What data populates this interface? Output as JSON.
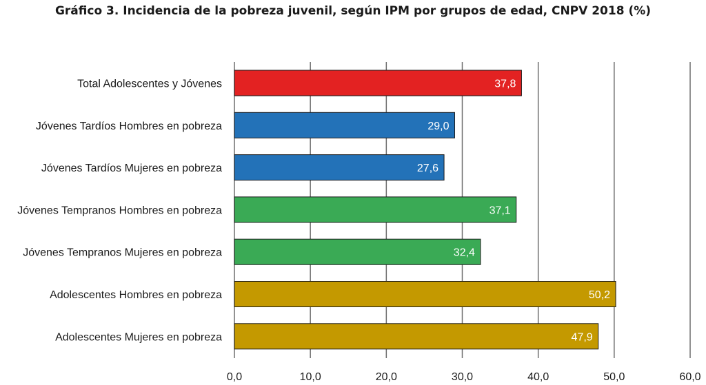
{
  "chart_data": {
    "type": "bar",
    "orientation": "horizontal",
    "title": "Gráfico 3. Incidencia de la pobreza juvenil, según IPM por grupos de edad, CNPV 2018 (%)",
    "xlabel": "",
    "ylabel": "",
    "categories": [
      "Total Adolescentes y Jóvenes",
      "Jóvenes Tardíos Hombres en pobreza",
      "Jóvenes Tardíos Mujeres en pobreza",
      "Jóvenes Tempranos Hombres en pobreza",
      "Jóvenes Tempranos Mujeres en pobreza",
      "Adolescentes Hombres en pobreza",
      "Adolescentes Mujeres en pobreza"
    ],
    "values": [
      37.8,
      29.0,
      27.6,
      37.1,
      32.4,
      50.2,
      47.9
    ],
    "value_labels": [
      "37,8",
      "29,0",
      "27,6",
      "37,1",
      "32,4",
      "50,2",
      "47,9"
    ],
    "bar_colors": [
      "#e32222",
      "#2372b8",
      "#2372b8",
      "#3aaa55",
      "#3aaa55",
      "#c49900",
      "#c49900"
    ],
    "xlim": [
      0,
      60
    ],
    "ticks": [
      0,
      10,
      20,
      30,
      40,
      50,
      60
    ],
    "tick_labels": [
      "0,0",
      "10,0",
      "20,0",
      "30,0",
      "40,0",
      "50,0",
      "60,0"
    ],
    "grid": true,
    "legend": "none"
  }
}
